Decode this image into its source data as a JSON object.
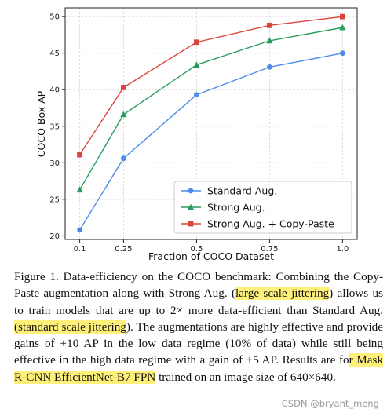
{
  "chart_data": {
    "type": "line",
    "xlabel": "Fraction of COCO Dataset",
    "ylabel": "COCO Box AP",
    "x": [
      0.1,
      0.25,
      0.5,
      0.75,
      1.0
    ],
    "x_tick_labels": [
      "0.1",
      "0.25",
      "0.5",
      "0.75",
      "1.0"
    ],
    "ylim": [
      19.5,
      51.2
    ],
    "y_ticks": [
      20,
      25,
      30,
      35,
      40,
      45,
      50
    ],
    "grid": true,
    "legend_position": "lower-right",
    "series": [
      {
        "name": "Standard Aug.",
        "color": "#4c8be8",
        "marker": "circle",
        "values": [
          20.8,
          30.6,
          39.3,
          43.1,
          45.0
        ]
      },
      {
        "name": "Strong Aug.",
        "color": "#2a9d5c",
        "marker": "triangle",
        "values": [
          26.3,
          36.6,
          43.4,
          46.7,
          48.5
        ]
      },
      {
        "name": "Strong Aug. + Copy-Paste",
        "color": "#d8453a",
        "marker": "square",
        "values": [
          31.1,
          40.3,
          46.5,
          48.8,
          50.0
        ]
      }
    ]
  },
  "caption": {
    "segments": [
      {
        "text": "Figure 1. Data-efficiency on the COCO benchmark: Combining the Copy-Paste augmentation along with Strong Aug. (",
        "highlight": false
      },
      {
        "text": "large scale jittering",
        "highlight": true
      },
      {
        "text": ") allows us to train models that are up to 2× more data-efficient than Standard Aug. ",
        "highlight": false
      },
      {
        "text": "(standard scale jittering",
        "highlight": true
      },
      {
        "text": "). The augmentations are highly effective and provide gains of +10 AP in the low data regime (10% of data) while still being effective in the high data regime with a gain of +5 AP. Results are fo",
        "highlight": false
      },
      {
        "text": "r Mask R-CNN EfficientNet-B7 FPN",
        "highlight": true
      },
      {
        "text": " trained on an image size of 640×640.",
        "highlight": false
      }
    ],
    "highlight_color": "#fff07a"
  },
  "watermark": "CSDN @bryant_meng"
}
